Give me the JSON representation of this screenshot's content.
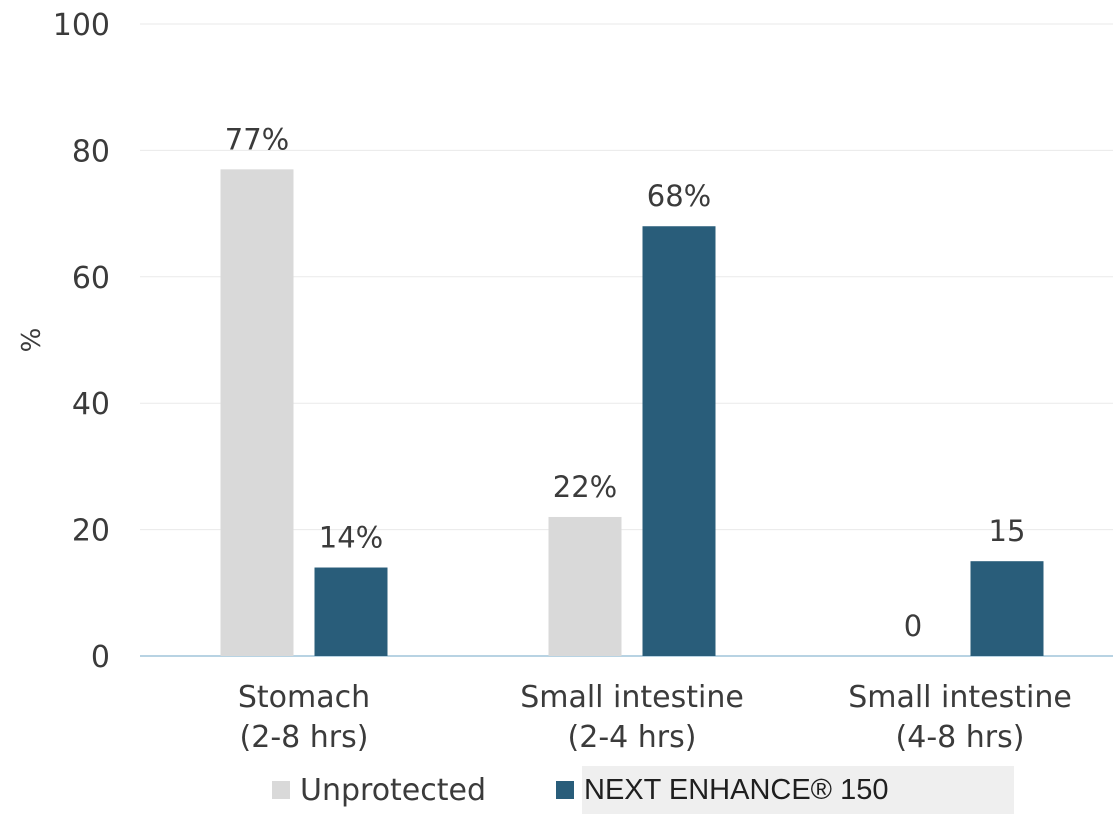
{
  "chart_data": {
    "type": "bar",
    "categories": [
      [
        "Stomach",
        "(2-8 hrs)"
      ],
      [
        "Small intestine",
        "(2-4 hrs)"
      ],
      [
        "Small intestine",
        "(4-8 hrs)"
      ]
    ],
    "series": [
      {
        "name": "Unprotected",
        "color": "#d9d9d9",
        "values": [
          77,
          22,
          0
        ],
        "labels": [
          "77%",
          "22%",
          "0"
        ]
      },
      {
        "name": "NEXT ENHANCE® 150",
        "color": "#295d7a",
        "values": [
          14,
          68,
          15
        ],
        "labels": [
          "14%",
          "68%",
          "15"
        ]
      }
    ],
    "ylabel": "%",
    "ylim": [
      0,
      100
    ],
    "yticks": [
      "0",
      "20",
      "40",
      "60",
      "80",
      "100"
    ],
    "grid": true,
    "legend_position": "bottom"
  }
}
